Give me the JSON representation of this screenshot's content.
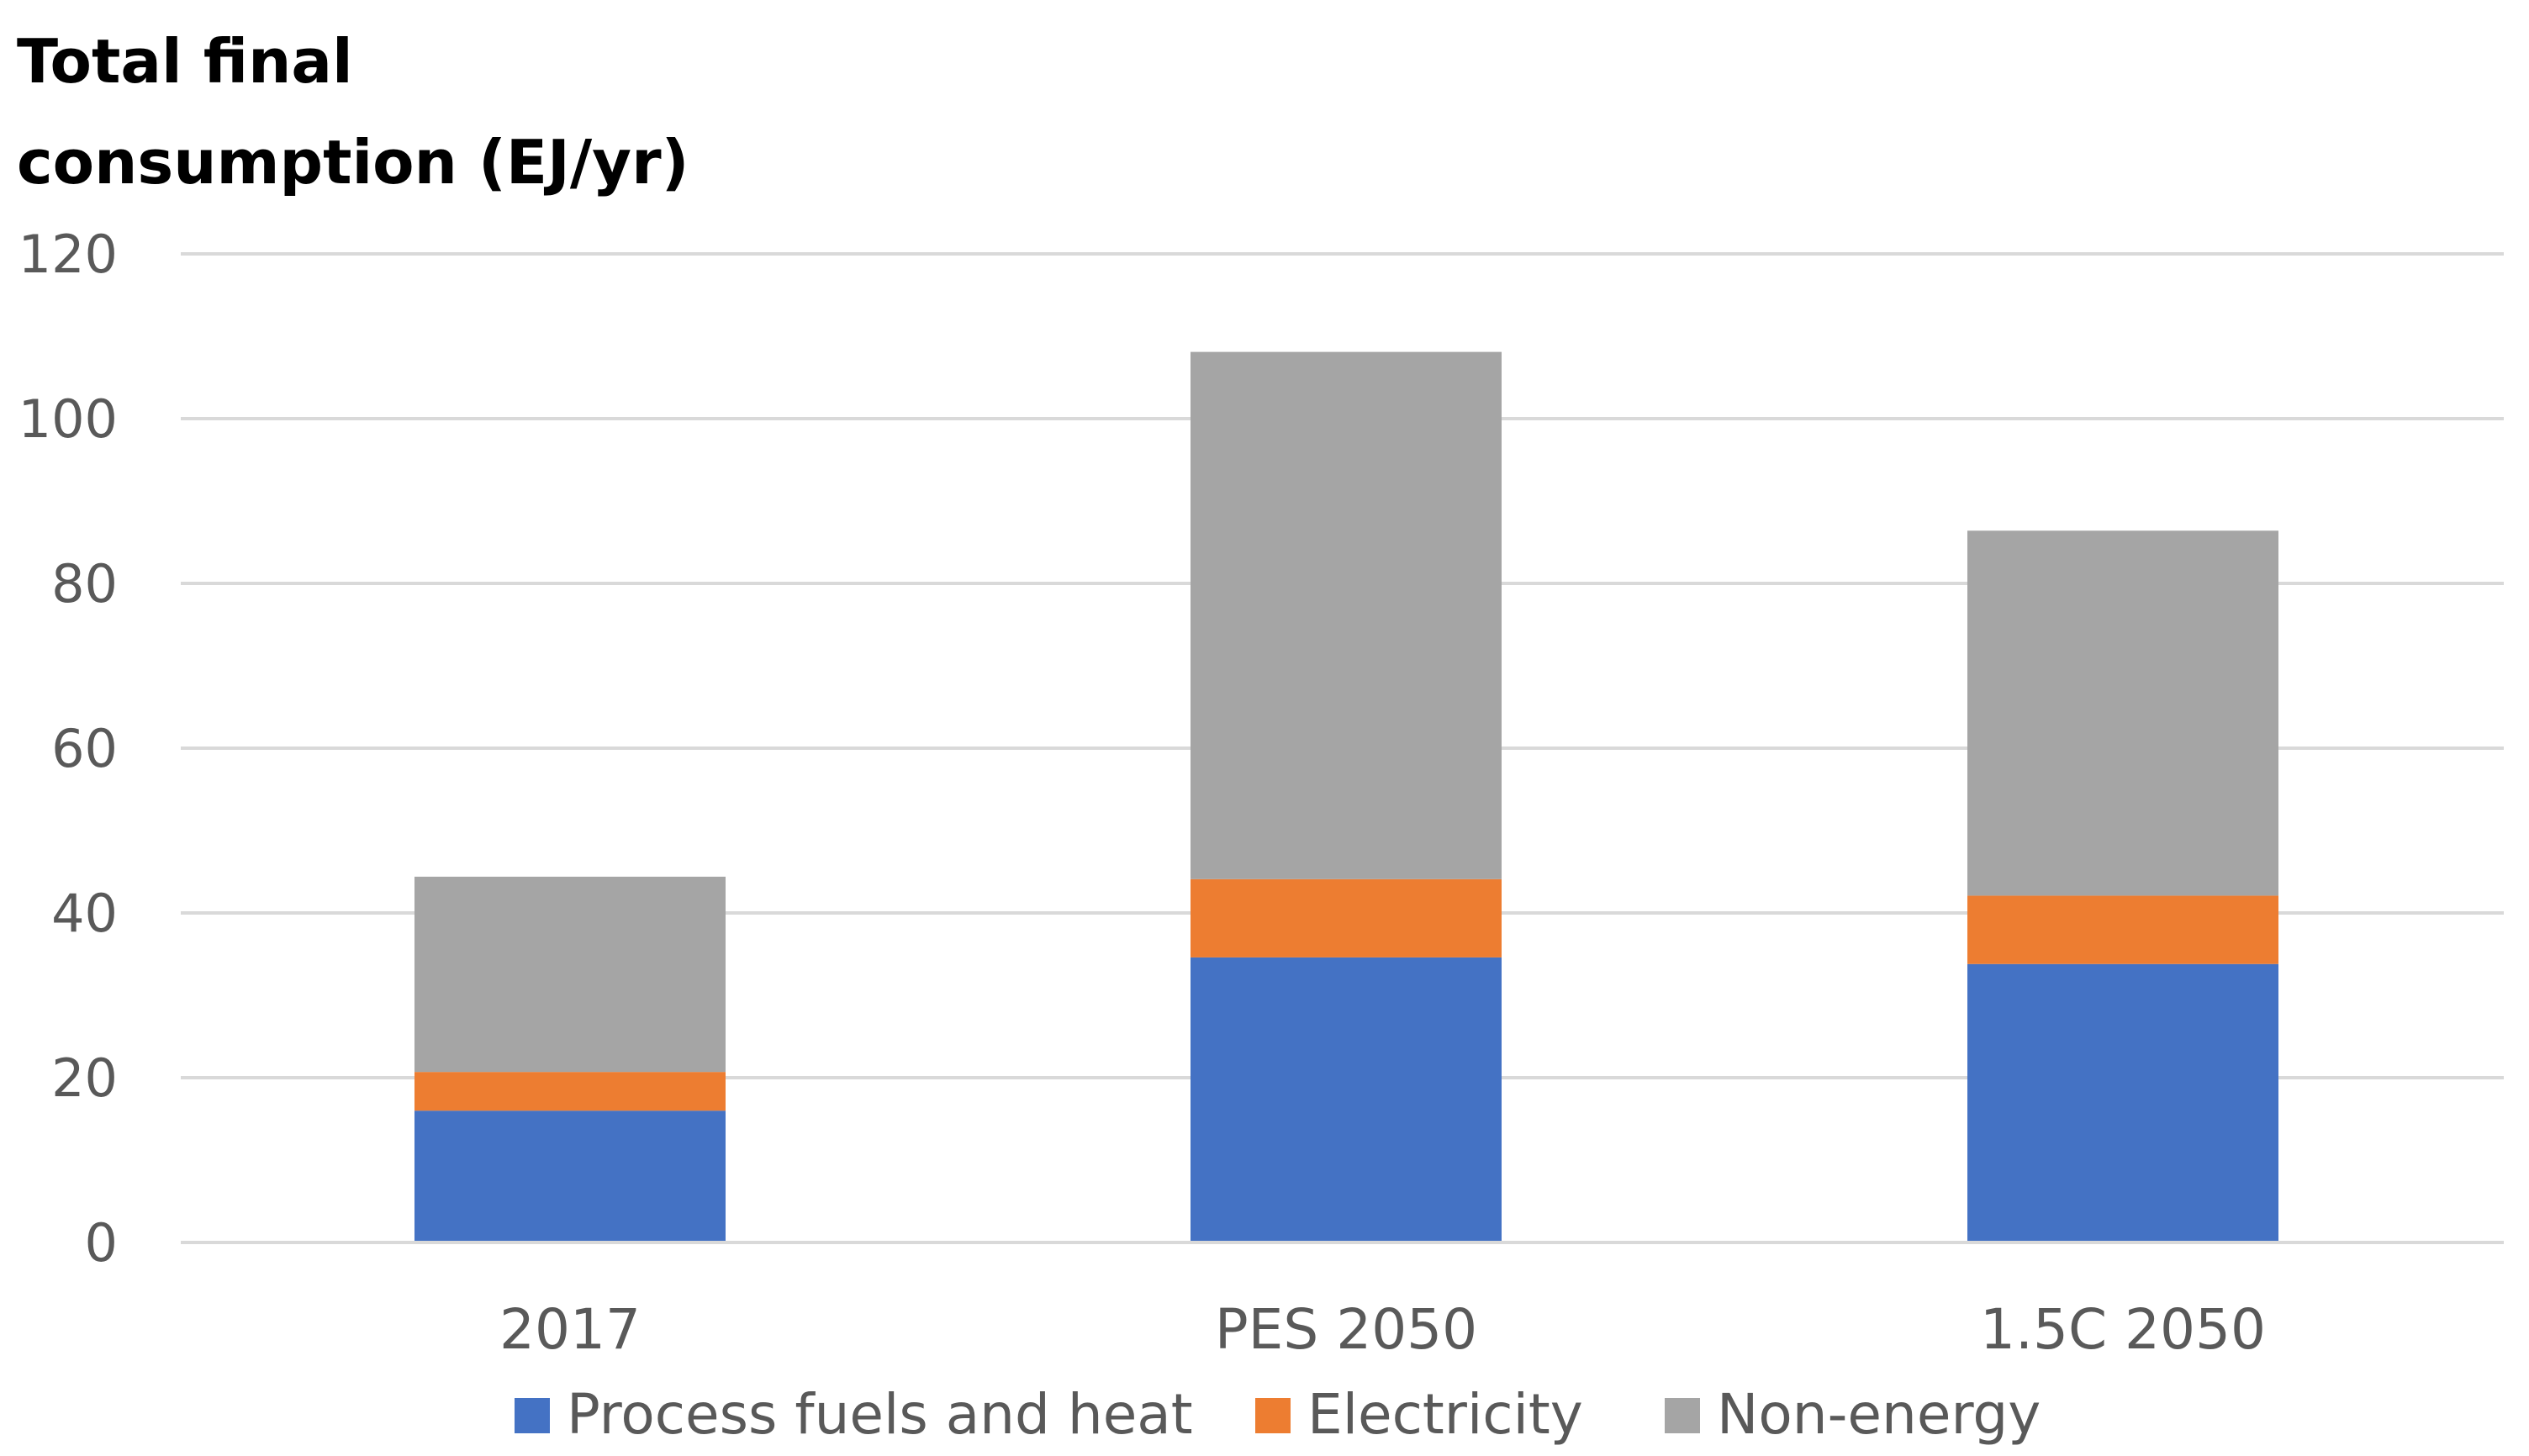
{
  "chart_data": {
    "type": "bar",
    "stacked": true,
    "title_lines": [
      "Total final",
      "consumption (EJ/yr)"
    ],
    "categories": [
      "2017",
      "PES 2050",
      "1.5C 2050"
    ],
    "series": [
      {
        "name": "Process fuels and heat",
        "color": "#4472C4",
        "values": [
          16,
          34.6,
          33.8
        ]
      },
      {
        "name": "Electricity",
        "color": "#ED7D31",
        "values": [
          4.7,
          9.5,
          8.3
        ]
      },
      {
        "name": "Non-energy",
        "color": "#A5A5A5",
        "values": [
          23.7,
          64,
          44.3
        ]
      }
    ],
    "ylim": [
      0,
      120
    ],
    "yticks": [
      0,
      20,
      40,
      60,
      80,
      100,
      120
    ],
    "grid": true,
    "legend_position": "bottom"
  }
}
